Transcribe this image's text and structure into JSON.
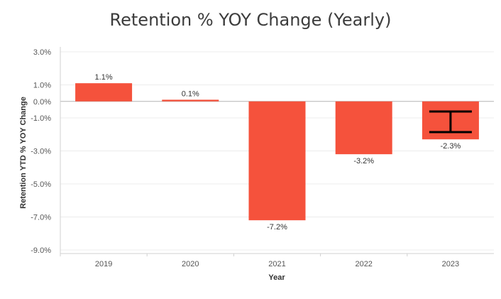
{
  "chart_data": {
    "type": "bar",
    "title": "Retention % YOY Change (Yearly)",
    "xlabel": "Year",
    "ylabel": "Retention YTD % YOY Change",
    "categories": [
      "2019",
      "2020",
      "2021",
      "2022",
      "2023"
    ],
    "values": [
      1.1,
      0.1,
      -7.2,
      -3.2,
      -2.3
    ],
    "data_labels": [
      "1.1%",
      "0.1%",
      "-7.2%",
      "-3.2%",
      "-2.3%"
    ],
    "y_ticks": [
      3.0,
      1.0,
      0.0,
      -1.0,
      -3.0,
      -5.0,
      -7.0,
      -9.0
    ],
    "y_tick_labels": [
      "3.0%",
      "1.0%",
      "0.0%",
      "-1.0%",
      "-3.0%",
      "-5.0%",
      "-7.0%",
      "-9.0%"
    ],
    "ylim": [
      -9.0,
      3.0
    ],
    "grid": true,
    "legend": "none",
    "bar_color": "#f5523c",
    "overlay_icon": "text-cursor-icon"
  }
}
